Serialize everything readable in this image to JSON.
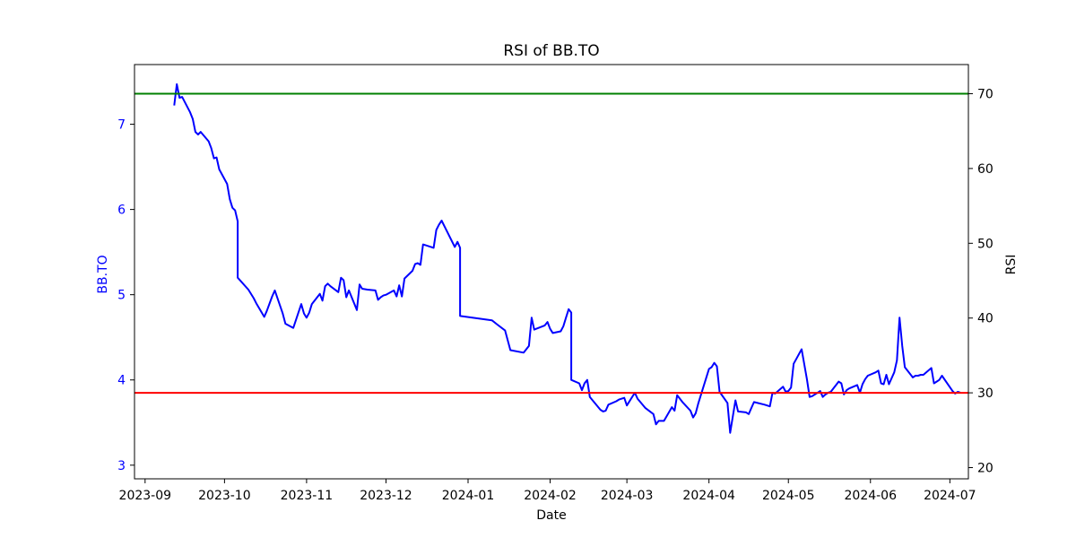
{
  "chart_data": {
    "type": "line",
    "title": "RSI of BB.TO",
    "xlabel": "Date",
    "ylabel_left": "BB.TO",
    "ylabel_right": "RSI",
    "x_ticks": [
      "2023-09",
      "2023-10",
      "2023-11",
      "2023-12",
      "2024-01",
      "2024-02",
      "2024-03",
      "2024-04",
      "2024-05",
      "2024-06",
      "2024-07"
    ],
    "y_left_ticks": [
      "3",
      "4",
      "5",
      "6",
      "7"
    ],
    "y_right_ticks": [
      "20",
      "30",
      "40",
      "50",
      "60",
      "70"
    ],
    "x_range": [
      "2023-08-28",
      "2024-07-08"
    ],
    "y_left_range": [
      2.84,
      7.7
    ],
    "y_right_range": [
      18.5,
      73.9
    ],
    "grid": false,
    "colors": {
      "price": "#0000ff",
      "rsi": "#000000",
      "overbought": "#008000",
      "oversold": "#ff0000",
      "left_axis": "#0000ff"
    },
    "thresholds": [
      {
        "value": 70,
        "color": "#008000"
      },
      {
        "value": 30,
        "color": "#ff0000"
      }
    ],
    "series": [
      {
        "axis": "left",
        "color": "#0000ff",
        "points": [
          [
            "2023-09-12",
            7.22
          ],
          [
            "2023-09-13",
            7.47
          ],
          [
            "2023-09-14",
            7.31
          ],
          [
            "2023-09-15",
            7.32
          ],
          [
            "2023-09-18",
            7.14
          ],
          [
            "2023-09-19",
            7.06
          ],
          [
            "2023-09-20",
            6.91
          ],
          [
            "2023-09-21",
            6.88
          ],
          [
            "2023-09-22",
            6.91
          ],
          [
            "2023-09-25",
            6.8
          ],
          [
            "2023-09-26",
            6.72
          ],
          [
            "2023-09-27",
            6.6
          ],
          [
            "2023-09-28",
            6.61
          ],
          [
            "2023-09-29",
            6.47
          ],
          [
            "2023-10-02",
            6.3
          ],
          [
            "2023-10-03",
            6.12
          ],
          [
            "2023-10-04",
            6.02
          ],
          [
            "2023-10-05",
            5.99
          ],
          [
            "2023-10-06",
            5.86
          ],
          [
            "2023-10-06",
            5.2
          ],
          [
            "2023-10-10",
            5.06
          ],
          [
            "2023-10-12",
            4.96
          ],
          [
            "2023-10-13",
            4.9
          ],
          [
            "2023-10-16",
            4.74
          ],
          [
            "2023-10-17",
            4.81
          ],
          [
            "2023-10-19",
            4.98
          ],
          [
            "2023-10-20",
            5.05
          ],
          [
            "2023-10-23",
            4.78
          ],
          [
            "2023-10-24",
            4.66
          ],
          [
            "2023-10-27",
            4.61
          ],
          [
            "2023-10-30",
            4.89
          ],
          [
            "2023-10-31",
            4.78
          ],
          [
            "2023-11-01",
            4.73
          ],
          [
            "2023-11-02",
            4.79
          ],
          [
            "2023-11-03",
            4.89
          ],
          [
            "2023-11-06",
            5.01
          ],
          [
            "2023-11-07",
            4.93
          ],
          [
            "2023-11-08",
            5.1
          ],
          [
            "2023-11-09",
            5.13
          ],
          [
            "2023-11-10",
            5.1
          ],
          [
            "2023-11-13",
            5.03
          ],
          [
            "2023-11-14",
            5.2
          ],
          [
            "2023-11-15",
            5.17
          ],
          [
            "2023-11-16",
            4.97
          ],
          [
            "2023-11-17",
            5.05
          ],
          [
            "2023-11-20",
            4.82
          ],
          [
            "2023-11-21",
            5.12
          ],
          [
            "2023-11-22",
            5.07
          ],
          [
            "2023-11-24",
            5.06
          ],
          [
            "2023-11-27",
            5.05
          ],
          [
            "2023-11-28",
            4.94
          ],
          [
            "2023-11-29",
            4.97
          ],
          [
            "2023-11-30",
            4.99
          ],
          [
            "2023-12-01",
            5.0
          ],
          [
            "2023-12-04",
            5.05
          ],
          [
            "2023-12-05",
            4.98
          ],
          [
            "2023-12-06",
            5.11
          ],
          [
            "2023-12-07",
            4.98
          ],
          [
            "2023-12-08",
            5.19
          ],
          [
            "2023-12-11",
            5.28
          ],
          [
            "2023-12-12",
            5.36
          ],
          [
            "2023-12-13",
            5.37
          ],
          [
            "2023-12-14",
            5.35
          ],
          [
            "2023-12-15",
            5.59
          ],
          [
            "2023-12-18",
            5.56
          ],
          [
            "2023-12-19",
            5.55
          ],
          [
            "2023-12-20",
            5.76
          ],
          [
            "2023-12-21",
            5.82
          ],
          [
            "2023-12-22",
            5.87
          ],
          [
            "2023-12-27",
            5.56
          ],
          [
            "2023-12-28",
            5.62
          ],
          [
            "2023-12-29",
            5.55
          ],
          [
            "2023-12-29",
            4.75
          ],
          [
            "2024-01-10",
            4.7
          ],
          [
            "2024-01-12",
            4.65
          ],
          [
            "2024-01-15",
            4.58
          ],
          [
            "2024-01-17",
            4.35
          ],
          [
            "2024-01-22",
            4.32
          ],
          [
            "2024-01-24",
            4.4
          ],
          [
            "2024-01-25",
            4.73
          ],
          [
            "2024-01-26",
            4.59
          ],
          [
            "2024-01-30",
            4.64
          ],
          [
            "2024-01-31",
            4.68
          ],
          [
            "2024-02-01",
            4.6
          ],
          [
            "2024-02-02",
            4.55
          ],
          [
            "2024-02-05",
            4.57
          ],
          [
            "2024-02-06",
            4.63
          ],
          [
            "2024-02-07",
            4.73
          ],
          [
            "2024-02-08",
            4.83
          ],
          [
            "2024-02-09",
            4.79
          ],
          [
            "2024-02-09",
            4.0
          ],
          [
            "2024-02-12",
            3.96
          ],
          [
            "2024-02-13",
            3.88
          ],
          [
            "2024-02-14",
            3.96
          ],
          [
            "2024-02-15",
            4.0
          ],
          [
            "2024-02-16",
            3.8
          ],
          [
            "2024-02-20",
            3.65
          ],
          [
            "2024-02-21",
            3.63
          ],
          [
            "2024-02-22",
            3.64
          ],
          [
            "2024-02-23",
            3.71
          ],
          [
            "2024-02-26",
            3.75
          ],
          [
            "2024-02-27",
            3.77
          ],
          [
            "2024-02-29",
            3.79
          ],
          [
            "2024-03-01",
            3.7
          ],
          [
            "2024-03-04",
            3.85
          ],
          [
            "2024-03-05",
            3.78
          ],
          [
            "2024-03-08",
            3.67
          ],
          [
            "2024-03-11",
            3.6
          ],
          [
            "2024-03-12",
            3.48
          ],
          [
            "2024-03-13",
            3.52
          ],
          [
            "2024-03-15",
            3.52
          ],
          [
            "2024-03-18",
            3.68
          ],
          [
            "2024-03-19",
            3.64
          ],
          [
            "2024-03-20",
            3.82
          ],
          [
            "2024-03-21",
            3.78
          ],
          [
            "2024-03-22",
            3.74
          ],
          [
            "2024-03-25",
            3.64
          ],
          [
            "2024-03-26",
            3.56
          ],
          [
            "2024-03-27",
            3.61
          ],
          [
            "2024-03-28",
            3.73
          ],
          [
            "2024-04-01",
            4.13
          ],
          [
            "2024-04-02",
            4.15
          ],
          [
            "2024-04-03",
            4.2
          ],
          [
            "2024-04-04",
            4.16
          ],
          [
            "2024-04-05",
            3.86
          ],
          [
            "2024-04-08",
            3.73
          ],
          [
            "2024-04-09",
            3.38
          ],
          [
            "2024-04-11",
            3.76
          ],
          [
            "2024-04-12",
            3.63
          ],
          [
            "2024-04-15",
            3.62
          ],
          [
            "2024-04-16",
            3.6
          ],
          [
            "2024-04-17",
            3.67
          ],
          [
            "2024-04-18",
            3.74
          ],
          [
            "2024-04-22",
            3.71
          ],
          [
            "2024-04-24",
            3.69
          ],
          [
            "2024-04-25",
            3.85
          ],
          [
            "2024-04-26",
            3.84
          ],
          [
            "2024-04-29",
            3.92
          ],
          [
            "2024-04-30",
            3.86
          ],
          [
            "2024-05-01",
            3.87
          ],
          [
            "2024-05-02",
            3.91
          ],
          [
            "2024-05-03",
            4.19
          ],
          [
            "2024-05-06",
            4.36
          ],
          [
            "2024-05-08",
            4.01
          ],
          [
            "2024-05-09",
            3.8
          ],
          [
            "2024-05-10",
            3.81
          ],
          [
            "2024-05-13",
            3.87
          ],
          [
            "2024-05-14",
            3.8
          ],
          [
            "2024-05-15",
            3.83
          ],
          [
            "2024-05-16",
            3.85
          ],
          [
            "2024-05-17",
            3.86
          ],
          [
            "2024-05-20",
            3.98
          ],
          [
            "2024-05-21",
            3.96
          ],
          [
            "2024-05-22",
            3.83
          ],
          [
            "2024-05-23",
            3.88
          ],
          [
            "2024-05-24",
            3.9
          ],
          [
            "2024-05-27",
            3.94
          ],
          [
            "2024-05-28",
            3.85
          ],
          [
            "2024-05-29",
            3.95
          ],
          [
            "2024-05-30",
            4.01
          ],
          [
            "2024-05-31",
            4.05
          ],
          [
            "2024-06-03",
            4.09
          ],
          [
            "2024-06-04",
            4.11
          ],
          [
            "2024-06-05",
            3.96
          ],
          [
            "2024-06-06",
            3.95
          ],
          [
            "2024-06-07",
            4.06
          ],
          [
            "2024-06-08",
            3.95
          ],
          [
            "2024-06-10",
            4.09
          ],
          [
            "2024-06-11",
            4.23
          ],
          [
            "2024-06-12",
            4.73
          ],
          [
            "2024-06-13",
            4.4
          ],
          [
            "2024-06-14",
            4.15
          ],
          [
            "2024-06-17",
            4.03
          ],
          [
            "2024-06-18",
            4.05
          ],
          [
            "2024-06-19",
            4.05
          ],
          [
            "2024-06-20",
            4.06
          ],
          [
            "2024-06-21",
            4.06
          ],
          [
            "2024-06-24",
            4.14
          ],
          [
            "2024-06-25",
            3.96
          ],
          [
            "2024-06-26",
            3.98
          ],
          [
            "2024-06-27",
            4.0
          ],
          [
            "2024-06-28",
            4.05
          ],
          [
            "2024-07-02",
            3.87
          ],
          [
            "2024-07-03",
            3.84
          ],
          [
            "2024-07-04",
            3.86
          ],
          [
            "2024-07-05",
            3.85
          ]
        ]
      }
    ]
  }
}
